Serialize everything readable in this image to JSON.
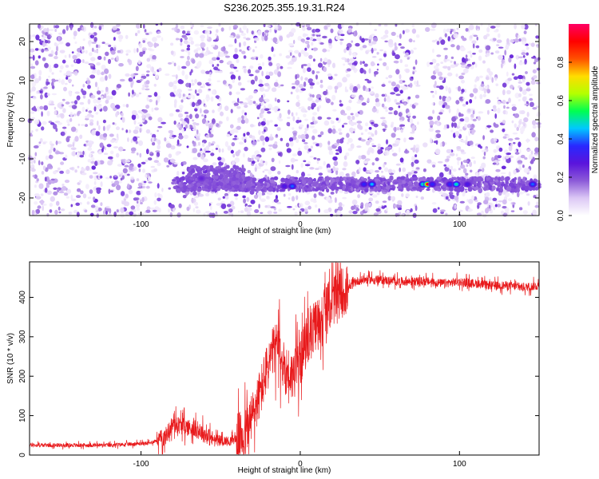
{
  "title": "S236.2025.355.19.31.R24",
  "chart_data": [
    {
      "type": "heatmap",
      "xlabel": "Height of straight line (km)",
      "ylabel": "Frequency (Hz)",
      "xlim": [
        -170,
        150
      ],
      "ylim": [
        -24.5,
        24.5
      ],
      "xticks": [
        -100,
        0,
        100
      ],
      "yticks": [
        -20,
        -10,
        0,
        10,
        20
      ],
      "colorbar": {
        "label": "Normalized spectral amplitude",
        "range": [
          0.0,
          1.0
        ],
        "ticks": [
          0.0,
          0.2,
          0.4,
          0.6,
          0.8
        ],
        "colors": [
          "#ffffff",
          "#dcc8f5",
          "#8c5ad8",
          "#5a14dc",
          "#2828ff",
          "#00c8ff",
          "#00ff50",
          "#b4ff00",
          "#ffdc00",
          "#ff5000",
          "#ff0000",
          "#ff0064"
        ]
      },
      "band": {
        "freq_hz": -16.5,
        "x_range_km": [
          -80,
          150
        ],
        "peaks": [
          {
            "x": -62,
            "freq": -15,
            "amplitude": 0.25
          },
          {
            "x": -10,
            "freq": -17,
            "amplitude": 0.3
          },
          {
            "x": -5,
            "freq": -17,
            "amplitude": 0.4
          },
          {
            "x": 40,
            "freq": -16.5,
            "amplitude": 0.35
          },
          {
            "x": 45,
            "freq": -16.5,
            "amplitude": 0.45
          },
          {
            "x": 77,
            "freq": -16.5,
            "amplitude": 0.5
          },
          {
            "x": 80,
            "freq": -16.5,
            "amplitude": 0.95
          },
          {
            "x": 83,
            "freq": -16.5,
            "amplitude": 0.35
          },
          {
            "x": 94,
            "freq": -16.5,
            "amplitude": 0.35
          },
          {
            "x": 98,
            "freq": -16.5,
            "amplitude": 0.5
          },
          {
            "x": 105,
            "freq": -16.5,
            "amplitude": 0.3
          },
          {
            "x": 146,
            "freq": -16.5,
            "amplitude": 0.4
          }
        ]
      },
      "empty_gaps_km": [
        [
          -88,
          -82
        ],
        [
          -12,
          -8
        ],
        [
          74,
          82
        ]
      ]
    },
    {
      "type": "line",
      "xlabel": "Height of straight line (km)",
      "ylabel": "SNR (10 * v/v)",
      "xlim": [
        -170,
        150
      ],
      "ylim": [
        0,
        490
      ],
      "xticks": [
        -100,
        0,
        100
      ],
      "yticks": [
        0,
        100,
        200,
        300,
        400
      ],
      "color": "#e8191b",
      "envelope": {
        "x": [
          -170,
          -120,
          -95,
          -85,
          -80,
          -70,
          -65,
          -55,
          -45,
          -35,
          -30,
          -25,
          -20,
          -15,
          -10,
          -5,
          0,
          5,
          10,
          15,
          20,
          25,
          30,
          35,
          40,
          45,
          50,
          60,
          70,
          80,
          90,
          100,
          110,
          120,
          130,
          140,
          150
        ],
        "y": [
          25,
          25,
          30,
          45,
          80,
          70,
          65,
          40,
          35,
          50,
          100,
          160,
          230,
          280,
          220,
          200,
          240,
          300,
          330,
          360,
          390,
          410,
          420,
          440,
          445,
          445,
          445,
          440,
          440,
          440,
          435,
          440,
          435,
          430,
          430,
          425,
          430
        ]
      }
    }
  ]
}
